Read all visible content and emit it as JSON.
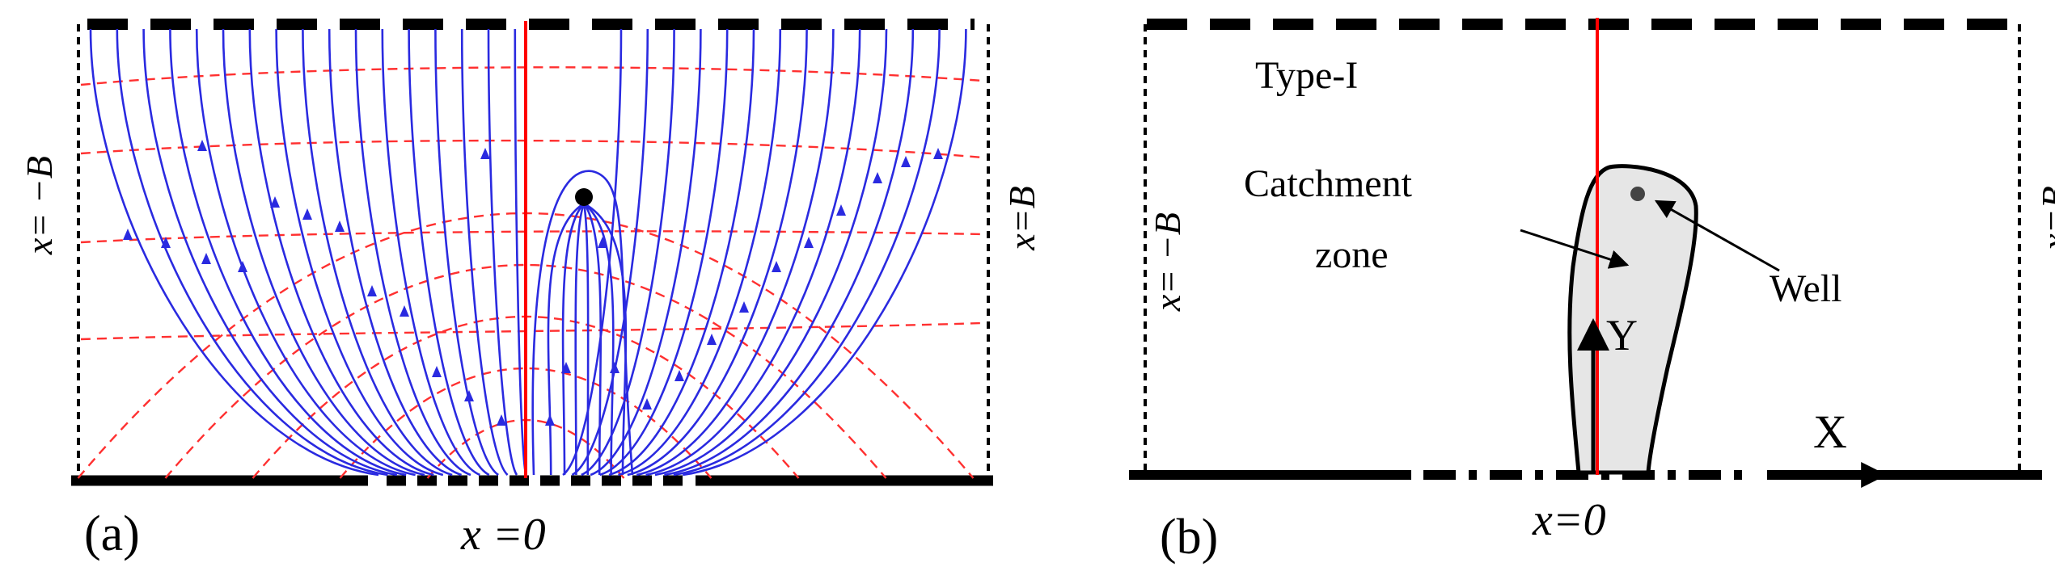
{
  "panel_a": {
    "label": "(a)",
    "x_zero": "x =0",
    "left_boundary": "x= −B",
    "right_boundary": "x=B"
  },
  "panel_b": {
    "label": "(b)",
    "type_label": "Type-I",
    "catchment_label_1": "Catchment",
    "catchment_label_2": "zone",
    "well_label": "Well",
    "y_axis": "Y",
    "x_axis": "X",
    "x_zero": "x=0",
    "left_boundary": "x= −B",
    "right_boundary": "x=B"
  },
  "colors": {
    "streamline": "#2a2ae0",
    "equipotential": "#ff3030",
    "divide": "#ff0000",
    "catchment_fill": "#e6e6e6",
    "boundary": "#000000"
  }
}
